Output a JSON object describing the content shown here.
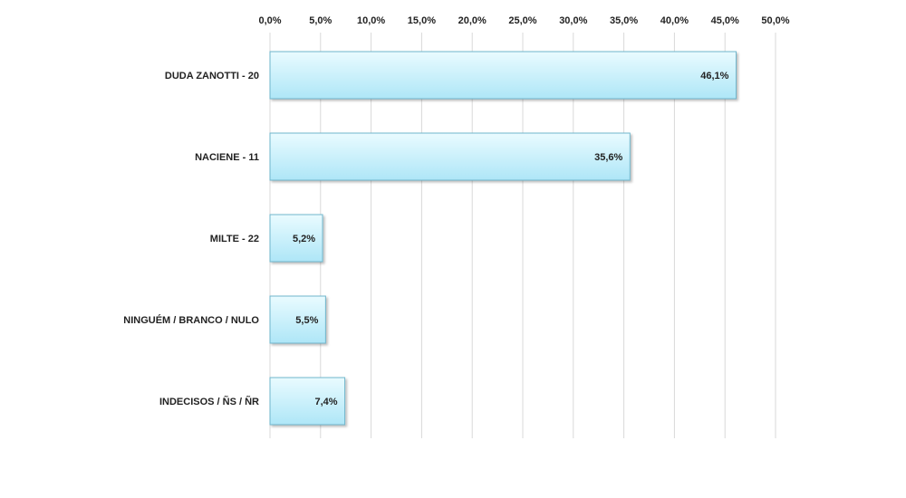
{
  "chart_data": {
    "type": "bar",
    "orientation": "horizontal",
    "categories": [
      "DUDA ZANOTTI - 20",
      "NACIENE - 11",
      "MILTE - 22",
      "NINGUÉM / BRANCO / NULO",
      "INDECISOS / ÑS / ÑR"
    ],
    "values": [
      46.1,
      35.6,
      5.2,
      5.5,
      7.4
    ],
    "value_labels": [
      "46,1%",
      "35,6%",
      "5,2%",
      "5,5%",
      "7,4%"
    ],
    "x_ticks": [
      0,
      5,
      10,
      15,
      20,
      25,
      30,
      35,
      40,
      45,
      50
    ],
    "x_tick_labels": [
      "0,0%",
      "5,0%",
      "10,0%",
      "15,0%",
      "20,0%",
      "25,0%",
      "30,0%",
      "35,0%",
      "40,0%",
      "45,0%",
      "50,0%"
    ],
    "xlim": [
      0,
      50
    ],
    "x_axis_position": "top",
    "grid": true,
    "legend": "none",
    "bar_color": "#bfeefb",
    "bar_border_color": "#6fb6cc"
  }
}
